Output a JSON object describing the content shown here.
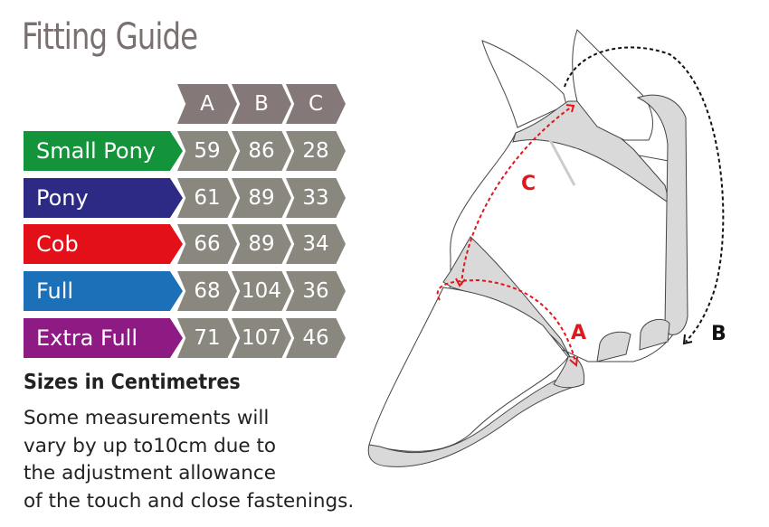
{
  "title": "Fitting Guide",
  "table": {
    "columns": [
      "A",
      "B",
      "C"
    ],
    "rows": [
      {
        "size": "Small Pony",
        "color": "#13933a",
        "values": [
          "59",
          "86",
          "28"
        ]
      },
      {
        "size": "Pony",
        "color": "#2d2a85",
        "values": [
          "61",
          "89",
          "33"
        ]
      },
      {
        "size": "Cob",
        "color": "#e3101a",
        "values": [
          "66",
          "89",
          "34"
        ]
      },
      {
        "size": "Full",
        "color": "#1b70b8",
        "values": [
          "68",
          "104",
          "36"
        ]
      },
      {
        "size": "Extra Full",
        "color": "#8e1a83",
        "values": [
          "71",
          "107",
          "46"
        ]
      }
    ]
  },
  "units_heading": "Sizes in Centimetres",
  "note_lines": [
    "Some measurements will",
    "vary by up to10cm due to",
    "the adjustment allowance",
    "of the touch and close fastenings."
  ],
  "diagram": {
    "labels": {
      "a": "A",
      "b": "B",
      "c": "C"
    },
    "measure_color": "#e0171d",
    "b_color": "#111111"
  }
}
